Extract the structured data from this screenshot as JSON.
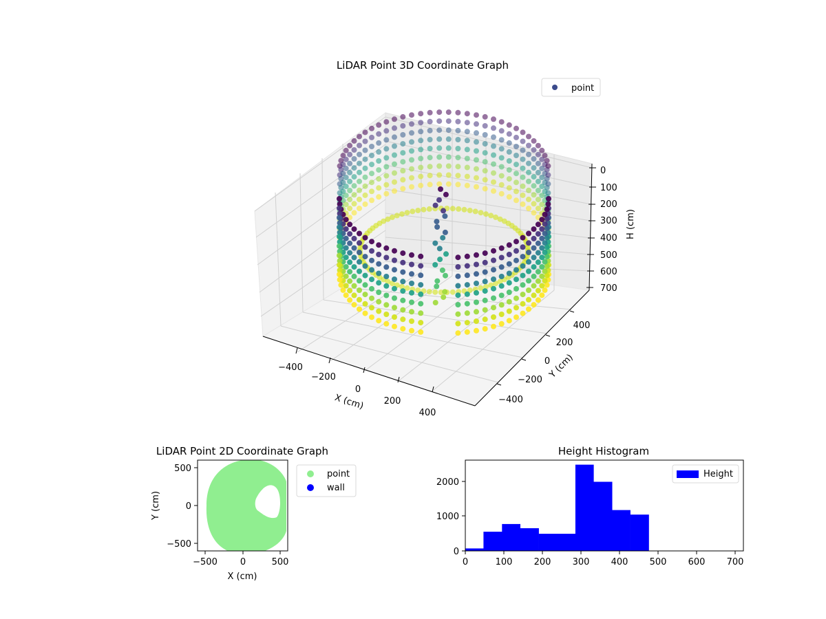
{
  "colors": {
    "viridis": [
      "#440154",
      "#46327e",
      "#365c8d",
      "#277f8e",
      "#1fa187",
      "#4ac16d",
      "#a0da39",
      "#d2e21b",
      "#fde725"
    ],
    "point_2d": "#90ee90",
    "wall_2d": "#0000ff",
    "histogram": "#0000ff",
    "legend_point_3d": "#3b4b8c"
  },
  "chart_data": [
    {
      "type": "scatter",
      "projection": "3d",
      "title": "LiDAR Point 3D Coordinate Graph",
      "xlabel": "X (cm)",
      "ylabel": "Y (cm)",
      "zlabel": "H (cm)",
      "x_ticks": [
        "−400",
        "−200",
        "0",
        "200",
        "400"
      ],
      "y_ticks": [
        "−400",
        "−200",
        "0",
        "200",
        "400"
      ],
      "z_ticks": [
        "0",
        "100",
        "200",
        "300",
        "400",
        "500",
        "600",
        "700"
      ],
      "xlim": [
        -560,
        560
      ],
      "ylim": [
        -560,
        560
      ],
      "zlim": [
        0,
        700
      ],
      "z_inverted": true,
      "colormap": "viridis",
      "legend": {
        "entries": [
          "point"
        ],
        "placement": "top-right"
      },
      "series": [
        {
          "name": "point",
          "description_shape": "cylindrical wall",
          "radius_cm": 540,
          "center": [
            60,
            20
          ],
          "height_range": [
            0,
            700
          ]
        }
      ]
    },
    {
      "type": "scatter",
      "title": "LiDAR Point 2D Coordinate Graph",
      "xlabel": "X (cm)",
      "ylabel": "Y (cm)",
      "x_ticks": [
        "−500",
        "0",
        "500"
      ],
      "y_ticks": [
        "500",
        "0",
        "−500"
      ],
      "xlim": [
        -600,
        600
      ],
      "ylim": [
        -600,
        600
      ],
      "legend": {
        "entries": [
          "point",
          "wall"
        ],
        "placement": "outside-right"
      },
      "series": [
        {
          "name": "point",
          "region": "filled disk",
          "center": [
            110,
            20
          ],
          "radius": 530
        },
        {
          "name": "wall",
          "points": []
        }
      ]
    },
    {
      "type": "bar",
      "title": "Height Histogram",
      "xlabel": "",
      "ylabel": "",
      "x_ticks": [
        "0",
        "100",
        "200",
        "300",
        "400",
        "500",
        "600",
        "700"
      ],
      "y_ticks": [
        "0",
        "1000",
        "2000"
      ],
      "xlim": [
        0,
        720
      ],
      "ylim": [
        0,
        2600
      ],
      "legend": {
        "entries": [
          "Height"
        ],
        "placement": "top-right"
      },
      "bin_edges": [
        0,
        47,
        95,
        142,
        190,
        237,
        285,
        332,
        380,
        427,
        475,
        522,
        570,
        617,
        665,
        712
      ],
      "series": [
        {
          "name": "Height",
          "values": [
            70,
            550,
            770,
            650,
            490,
            490,
            2470,
            1980,
            1170,
            1040,
            0,
            0,
            0,
            0,
            0
          ]
        }
      ]
    }
  ]
}
